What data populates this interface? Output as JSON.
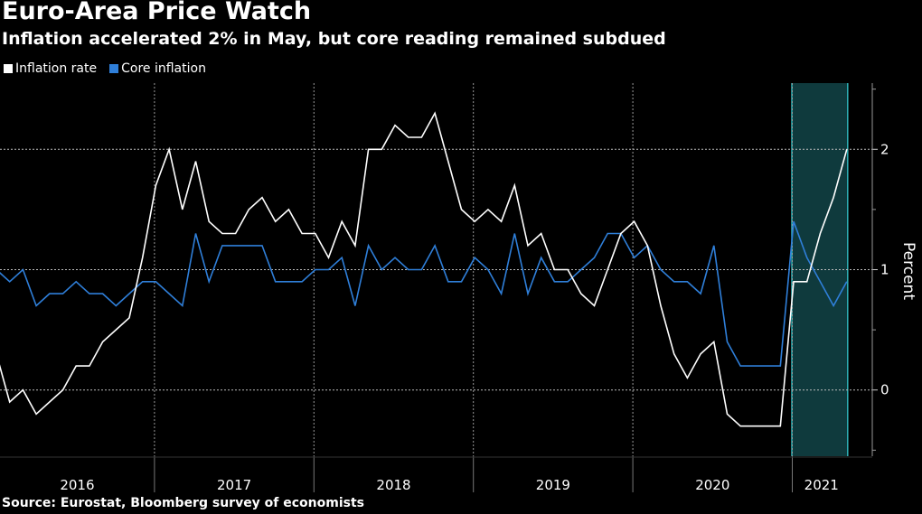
{
  "chart_data": {
    "type": "line",
    "title": "Euro-Area Price Watch",
    "subtitle": "Inflation accelerated 2% in May, but core reading remained subdued",
    "source": "Source: Eurostat, Bloomberg survey of economists",
    "ylabel": "Percent",
    "ylim": [
      -0.55,
      2.55
    ],
    "y_ticks": [
      0,
      1,
      2
    ],
    "y_tick_labels": [
      "0",
      "1",
      "2"
    ],
    "grid": "dotted horizontal at ticks, dotted vertical at year boundaries",
    "legend": "top-left",
    "x_start": "2016-01",
    "x_end": "2021-05",
    "year_labels": [
      "2016",
      "2017",
      "2018",
      "2019",
      "2020",
      "2021"
    ],
    "highlight": {
      "from": "2021-01",
      "to": "2021-05",
      "color": "#0f3a3d",
      "edge_color": "#2fb3b8"
    },
    "series": [
      {
        "name": "Inflation rate",
        "color": "#ffffff",
        "values": [
          0.3,
          -0.1,
          0.0,
          -0.2,
          -0.1,
          0.0,
          0.2,
          0.2,
          0.4,
          0.5,
          0.6,
          1.1,
          1.7,
          2.0,
          1.5,
          1.9,
          1.4,
          1.3,
          1.3,
          1.5,
          1.6,
          1.4,
          1.5,
          1.3,
          1.3,
          1.1,
          1.4,
          1.2,
          2.0,
          2.0,
          2.2,
          2.1,
          2.1,
          2.3,
          1.9,
          1.5,
          1.4,
          1.5,
          1.4,
          1.7,
          1.2,
          1.3,
          1.0,
          1.0,
          0.8,
          0.7,
          1.0,
          1.3,
          1.4,
          1.2,
          0.7,
          0.3,
          0.1,
          0.3,
          0.4,
          -0.2,
          -0.3,
          -0.3,
          -0.3,
          -0.3,
          0.9,
          0.9,
          1.3,
          1.6,
          2.0
        ]
      },
      {
        "name": "Core inflation",
        "color": "#2f7fd9",
        "values": [
          1.0,
          0.9,
          1.0,
          0.7,
          0.8,
          0.8,
          0.9,
          0.8,
          0.8,
          0.7,
          0.8,
          0.9,
          0.9,
          0.8,
          0.7,
          1.3,
          0.9,
          1.2,
          1.2,
          1.2,
          1.2,
          0.9,
          0.9,
          0.9,
          1.0,
          1.0,
          1.1,
          0.7,
          1.2,
          1.0,
          1.1,
          1.0,
          1.0,
          1.2,
          0.9,
          0.9,
          1.1,
          1.0,
          0.8,
          1.3,
          0.8,
          1.1,
          0.9,
          0.9,
          1.0,
          1.1,
          1.3,
          1.3,
          1.1,
          1.2,
          1.0,
          0.9,
          0.9,
          0.8,
          1.2,
          0.4,
          0.2,
          0.2,
          0.2,
          0.2,
          1.4,
          1.1,
          0.9,
          0.7,
          0.9
        ]
      }
    ]
  }
}
